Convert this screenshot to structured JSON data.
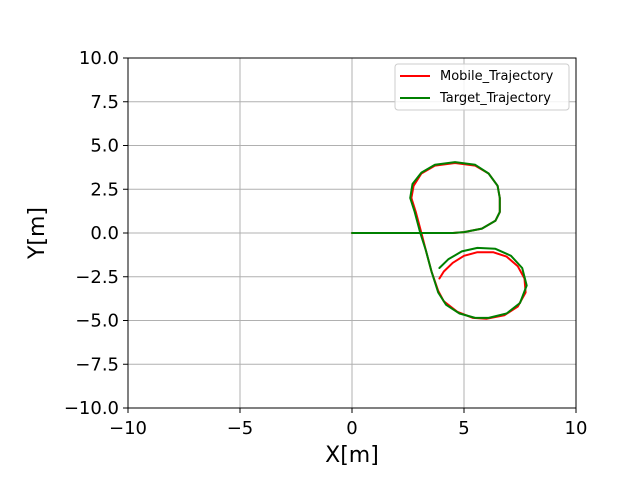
{
  "chart_data": {
    "type": "line",
    "title": "",
    "xlabel": "X[m]",
    "ylabel": "Y[m]",
    "xlim": [
      -10,
      10
    ],
    "ylim": [
      -10,
      10
    ],
    "xticks": [
      -10,
      -5,
      0,
      5,
      10
    ],
    "yticks": [
      10.0,
      7.5,
      5.0,
      2.5,
      0.0,
      -2.5,
      -5.0,
      -7.5,
      -10.0
    ],
    "xtick_labels": [
      "−10",
      "−5",
      "0",
      "5",
      "10"
    ],
    "ytick_labels": [
      "10.0",
      "7.5",
      "5.0",
      "2.5",
      "0.0",
      "−2.5",
      "−5.0",
      "−7.5",
      "−10.0"
    ],
    "grid": true,
    "legend_position": "top-right",
    "series": [
      {
        "name": "Mobile_Trajectory",
        "color": "#ff0000",
        "points": [
          [
            0.0,
            0.0
          ],
          [
            1.0,
            0.0
          ],
          [
            2.0,
            0.0
          ],
          [
            3.0,
            0.0
          ],
          [
            4.0,
            0.0
          ],
          [
            4.5,
            0.0
          ],
          [
            5.0,
            0.05
          ],
          [
            5.8,
            0.25
          ],
          [
            6.4,
            0.7
          ],
          [
            6.6,
            1.2
          ],
          [
            6.6,
            2.0
          ],
          [
            6.5,
            2.7
          ],
          [
            6.1,
            3.4
          ],
          [
            5.5,
            3.85
          ],
          [
            4.6,
            4.0
          ],
          [
            3.7,
            3.85
          ],
          [
            3.1,
            3.4
          ],
          [
            2.75,
            2.7
          ],
          [
            2.65,
            2.0
          ],
          [
            2.85,
            1.2
          ],
          [
            3.1,
            0.0
          ],
          [
            3.3,
            -1.0
          ],
          [
            3.55,
            -2.2
          ],
          [
            3.85,
            -3.3
          ],
          [
            4.1,
            -3.9
          ],
          [
            4.7,
            -4.5
          ],
          [
            5.4,
            -4.85
          ],
          [
            6.0,
            -4.9
          ],
          [
            6.8,
            -4.7
          ],
          [
            7.4,
            -4.2
          ],
          [
            7.75,
            -3.4
          ],
          [
            7.7,
            -2.6
          ],
          [
            7.4,
            -1.9
          ],
          [
            6.9,
            -1.35
          ],
          [
            6.3,
            -1.1
          ],
          [
            5.6,
            -1.1
          ],
          [
            5.0,
            -1.3
          ],
          [
            4.5,
            -1.7
          ],
          [
            4.1,
            -2.2
          ],
          [
            3.9,
            -2.6
          ]
        ]
      },
      {
        "name": "Target_Trajectory",
        "color": "#008000",
        "points": [
          [
            0.0,
            0.0
          ],
          [
            1.0,
            0.0
          ],
          [
            2.0,
            0.0
          ],
          [
            3.0,
            0.0
          ],
          [
            4.0,
            0.0
          ],
          [
            4.5,
            0.0
          ],
          [
            5.0,
            0.05
          ],
          [
            5.8,
            0.25
          ],
          [
            6.4,
            0.7
          ],
          [
            6.6,
            1.2
          ],
          [
            6.6,
            2.0
          ],
          [
            6.5,
            2.7
          ],
          [
            6.1,
            3.4
          ],
          [
            5.5,
            3.9
          ],
          [
            4.6,
            4.05
          ],
          [
            3.7,
            3.9
          ],
          [
            3.1,
            3.45
          ],
          [
            2.7,
            2.8
          ],
          [
            2.6,
            2.0
          ],
          [
            2.8,
            1.2
          ],
          [
            3.05,
            0.0
          ],
          [
            3.3,
            -1.0
          ],
          [
            3.55,
            -2.2
          ],
          [
            3.85,
            -3.4
          ],
          [
            4.2,
            -4.1
          ],
          [
            4.8,
            -4.6
          ],
          [
            5.5,
            -4.85
          ],
          [
            6.1,
            -4.85
          ],
          [
            6.9,
            -4.6
          ],
          [
            7.5,
            -4.0
          ],
          [
            7.8,
            -3.0
          ],
          [
            7.6,
            -2.0
          ],
          [
            7.1,
            -1.3
          ],
          [
            6.4,
            -0.9
          ],
          [
            5.6,
            -0.85
          ],
          [
            4.9,
            -1.05
          ],
          [
            4.3,
            -1.5
          ],
          [
            3.9,
            -2.0
          ]
        ]
      }
    ]
  }
}
